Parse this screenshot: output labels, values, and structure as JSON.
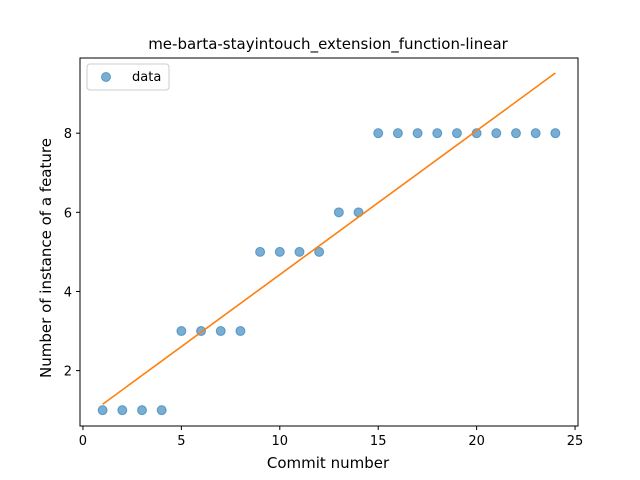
{
  "chart_data": {
    "type": "scatter",
    "title": "me-barta-stayintouch_extension_function-linear",
    "xlabel": "Commit number",
    "ylabel": "Number of instance of a feature",
    "xlim": [
      -0.15,
      25.15
    ],
    "ylim": [
      0.6,
      9.9
    ],
    "xticks": [
      0,
      5,
      10,
      15,
      20,
      25
    ],
    "yticks": [
      2,
      4,
      6,
      8
    ],
    "grid": false,
    "legend": {
      "position": "upper left",
      "entries": [
        "data"
      ]
    },
    "series": [
      {
        "name": "data",
        "kind": "scatter",
        "color": "#1f77b4",
        "x": [
          1,
          2,
          3,
          4,
          5,
          6,
          7,
          8,
          9,
          10,
          11,
          12,
          13,
          14,
          15,
          16,
          17,
          18,
          19,
          20,
          21,
          22,
          23,
          24
        ],
        "y": [
          1,
          1,
          1,
          1,
          3,
          3,
          3,
          3,
          5,
          5,
          5,
          5,
          6,
          6,
          8,
          8,
          8,
          8,
          8,
          8,
          8,
          8,
          8,
          8
        ]
      },
      {
        "kind": "line",
        "color": "#ff7f0e",
        "x": [
          1,
          24
        ],
        "y": [
          1.15,
          9.52
        ]
      }
    ]
  }
}
